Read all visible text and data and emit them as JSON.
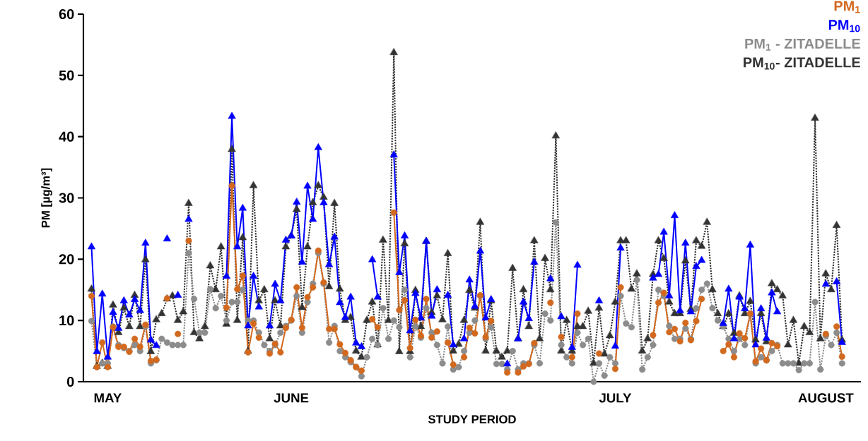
{
  "chart_data": {
    "type": "line",
    "xlabel": "STUDY PERIOD",
    "ylabel": "PM [µg/m³]",
    "legend": "top right",
    "ylim": [
      0,
      60
    ],
    "yticks": [
      0,
      10,
      20,
      30,
      40,
      50,
      60
    ],
    "categories": [
      null,
      null,
      null,
      "MAY",
      null,
      null,
      null,
      null,
      null,
      null,
      null,
      null,
      null,
      null,
      null,
      null,
      null,
      null,
      null,
      null,
      null,
      null,
      null,
      null,
      null,
      null,
      null,
      null,
      null,
      null,
      null,
      null,
      null,
      null,
      null,
      null,
      null,
      "JUNE",
      null,
      null,
      null,
      null,
      null,
      null,
      null,
      null,
      null,
      null,
      null,
      null,
      null,
      null,
      null,
      null,
      null,
      null,
      null,
      null,
      null,
      null,
      null,
      null,
      null,
      null,
      null,
      null,
      null,
      null,
      null,
      null,
      null,
      null,
      null,
      null,
      null,
      null,
      null,
      null,
      null,
      null,
      null,
      null,
      null,
      null,
      null,
      null,
      null,
      null,
      null,
      null,
      null,
      null,
      null,
      null,
      null,
      null,
      null,
      "JULY",
      null,
      null,
      null,
      null,
      null,
      null,
      null,
      null,
      null,
      null,
      null,
      null,
      null,
      null,
      null,
      null,
      null,
      null,
      null,
      null,
      null,
      null,
      null,
      null,
      null,
      null,
      null,
      null,
      null,
      null,
      null,
      null,
      null,
      null,
      null,
      null,
      null,
      null,
      "AUGUST",
      null,
      null,
      null
    ],
    "series": [
      {
        "name": "PM$_{1}$",
        "color": "#d2691e",
        "marker": "circle",
        "line_style": "solid",
        "values": [
          14.0,
          2.4,
          6.4,
          2.4,
          8.9,
          5.7,
          5.7,
          4.9,
          7.0,
          5.7,
          9.3,
          3.4,
          3.6,
          null,
          13.6,
          null,
          7.8,
          null,
          23.0,
          null,
          null,
          null,
          null,
          null,
          null,
          12.1,
          32.0,
          15.1,
          17.3,
          4.8,
          9.5,
          7.2,
          null,
          4.6,
          6.2,
          4.8,
          8.8,
          10.1,
          15.4,
          8.8,
          13.8,
          15.4,
          21.4,
          16.2,
          8.6,
          8.6,
          6.1,
          4.7,
          3.5,
          2.4,
          1.8,
          null,
          10.2,
          8.9,
          null,
          null,
          27.6,
          11.7,
          13.3,
          5.5,
          10.1,
          7.5,
          13.5,
          7.2,
          8.2,
          null,
          6.4,
          2.8,
          null,
          4.0,
          8.8,
          7.9,
          14.1,
          7.3,
          9.9,
          null,
          null,
          1.5,
          null,
          1.5,
          2.5,
          2.9,
          6.3,
          null,
          null,
          12.9,
          null,
          7.3,
          null,
          4.0,
          11.1,
          null,
          null,
          null,
          4.6,
          null,
          null,
          2.1,
          15.4,
          null,
          null,
          null,
          null,
          null,
          7.6,
          12.9,
          14.5,
          8.1,
          8.6,
          6.6,
          9.6,
          6.8,
          9.9,
          13.5,
          null,
          null,
          null,
          5.0,
          6.1,
          4.0,
          7.9,
          7.1,
          11.1,
          3.3,
          5.4,
          3.5,
          6.3,
          5.8,
          null,
          null,
          null,
          null,
          null,
          null,
          null,
          null,
          7.8,
          null,
          9.0,
          4.1
        ]
      },
      {
        "name": "PM$_{10}$",
        "color": "#0000ff",
        "marker": "triangle",
        "line_style": "solid",
        "values": [
          22.0,
          4.9,
          14.3,
          4.0,
          11.3,
          8.7,
          13.2,
          10.9,
          13.4,
          11.6,
          22.6,
          6.8,
          5.9,
          null,
          23.3,
          null,
          14.1,
          null,
          26.5,
          null,
          null,
          null,
          null,
          null,
          null,
          17.2,
          43.3,
          22.0,
          28.3,
          9.1,
          17.2,
          12.2,
          null,
          9.1,
          15.9,
          13.2,
          23.1,
          23.8,
          29.3,
          19.5,
          31.9,
          26.5,
          38.2,
          29.2,
          19.1,
          23.6,
          12.9,
          10.5,
          13.8,
          6.3,
          5.7,
          null,
          19.9,
          13.8,
          null,
          null,
          37.0,
          17.8,
          23.8,
          8.3,
          14.4,
          10.4,
          22.9,
          10.7,
          15.0,
          null,
          14.1,
          6.0,
          null,
          7.0,
          16.6,
          12.3,
          21.3,
          10.4,
          13.4,
          null,
          null,
          2.9,
          null,
          7.0,
          13.0,
          10.3,
          19.5,
          null,
          null,
          16.8,
          null,
          10.6,
          null,
          5.6,
          19.0,
          null,
          null,
          null,
          13.2,
          null,
          null,
          5.8,
          21.8,
          null,
          null,
          null,
          null,
          null,
          16.9,
          17.5,
          24.4,
          14.0,
          27.1,
          11.6,
          22.6,
          11.4,
          18.8,
          19.8,
          null,
          null,
          null,
          9.5,
          15.1,
          7.0,
          13.8,
          11.9,
          22.3,
          6.0,
          11.9,
          7.1,
          14.5,
          11.4,
          null,
          null,
          null,
          null,
          null,
          null,
          null,
          null,
          15.9,
          null,
          16.3,
          6.4
        ]
      },
      {
        "name": "PM$_{1}$ - ZITADELLE",
        "color": "#8c8c8c",
        "marker": "circle",
        "line_style": "dotted",
        "values": [
          9.9,
          2.4,
          3.0,
          3.0,
          9.0,
          6.0,
          5.5,
          5.0,
          6.0,
          5.0,
          9.0,
          3.0,
          3.5,
          7.0,
          6.4,
          6.0,
          6.0,
          6.0,
          21.0,
          13.5,
          8.0,
          8.0,
          15.1,
          12.0,
          14.0,
          10.0,
          13.0,
          13.0,
          15.0,
          10.0,
          10.0,
          8.0,
          6.0,
          5.0,
          6.0,
          8.0,
          9.1,
          10.0,
          14.0,
          8.0,
          13.0,
          16.0,
          21.0,
          16.0,
          6.4,
          9.1,
          5.0,
          4.0,
          3.2,
          2.4,
          0.9,
          4.0,
          7.0,
          6.0,
          12.0,
          7.0,
          10.0,
          8.9,
          15.0,
          4.0,
          9.0,
          7.2,
          12.0,
          8.0,
          6.0,
          3.0,
          9.0,
          2.0,
          2.4,
          5.0,
          8.0,
          10.0,
          14.0,
          7.0,
          8.9,
          2.9,
          2.9,
          2.0,
          5.0,
          2.0,
          3.0,
          3.0,
          6.0,
          3.0,
          11.1,
          10.0,
          26.0,
          6.0,
          4.0,
          3.0,
          8.0,
          6.0,
          7.0,
          0.0,
          3.0,
          1.0,
          4.0,
          3.0,
          14.0,
          9.5,
          8.9,
          16.6,
          2.0,
          4.0,
          6.0,
          15.0,
          14.0,
          9.1,
          7.0,
          7.0,
          8.7,
          7.0,
          12.0,
          15.0,
          16.0,
          12.0,
          10.0,
          9.0,
          7.0,
          5.0,
          7.0,
          6.0,
          11.0,
          3.0,
          4.0,
          3.5,
          5.0,
          6.0,
          3.0,
          3.0,
          3.0,
          1.9,
          3.0,
          3.0,
          13.0,
          2.0,
          7.5,
          6.0,
          8.0,
          3.0
        ]
      },
      {
        "name": "PM$_{10}$- ZITADELLE",
        "color": "#333333",
        "marker": "triangle",
        "line_style": "dotted",
        "values": [
          15.1,
          2.5,
          3.0,
          2.5,
          12.5,
          8.0,
          12.0,
          9.0,
          14.1,
          9.0,
          19.9,
          4.9,
          10.1,
          11.1,
          13.5,
          14.0,
          10.0,
          11.4,
          29.1,
          8.0,
          7.0,
          9.0,
          18.9,
          15.0,
          22.0,
          9.4,
          37.9,
          10.0,
          23.5,
          5.0,
          32.0,
          13.2,
          15.0,
          7.0,
          13.2,
          9.1,
          22.0,
          23.8,
          28.1,
          12.1,
          22.0,
          29.2,
          32.0,
          30.1,
          15.5,
          29.1,
          15.1,
          10.0,
          10.5,
          5.0,
          4.0,
          10.0,
          13.0,
          6.0,
          23.1,
          10.0,
          53.7,
          4.9,
          22.5,
          4.9,
          14.9,
          9.0,
          22.9,
          11.3,
          14.0,
          10.1,
          20.9,
          5.0,
          6.1,
          10.0,
          14.9,
          12.0,
          26.0,
          5.0,
          13.2,
          5.0,
          4.0,
          5.0,
          18.5,
          7.0,
          15.0,
          9.0,
          23.0,
          7.0,
          20.1,
          15.0,
          40.1,
          5.0,
          10.0,
          5.0,
          9.0,
          9.0,
          11.5,
          3.0,
          12.0,
          4.5,
          7.5,
          13.0,
          23.0,
          23.0,
          15.1,
          17.6,
          5.0,
          7.0,
          17.5,
          23.0,
          20.1,
          13.0,
          11.1,
          11.1,
          19.7,
          11.8,
          23.0,
          22.1,
          26.0,
          15.0,
          11.1,
          9.0,
          11.1,
          7.9,
          14.0,
          11.1,
          13.1,
          6.8,
          11.1,
          6.5,
          16.0,
          15.0,
          14.0,
          6.0,
          10.0,
          3.0,
          9.0,
          8.0,
          43.0,
          7.0,
          17.6,
          15.0,
          25.5,
          6.8
        ]
      }
    ]
  }
}
